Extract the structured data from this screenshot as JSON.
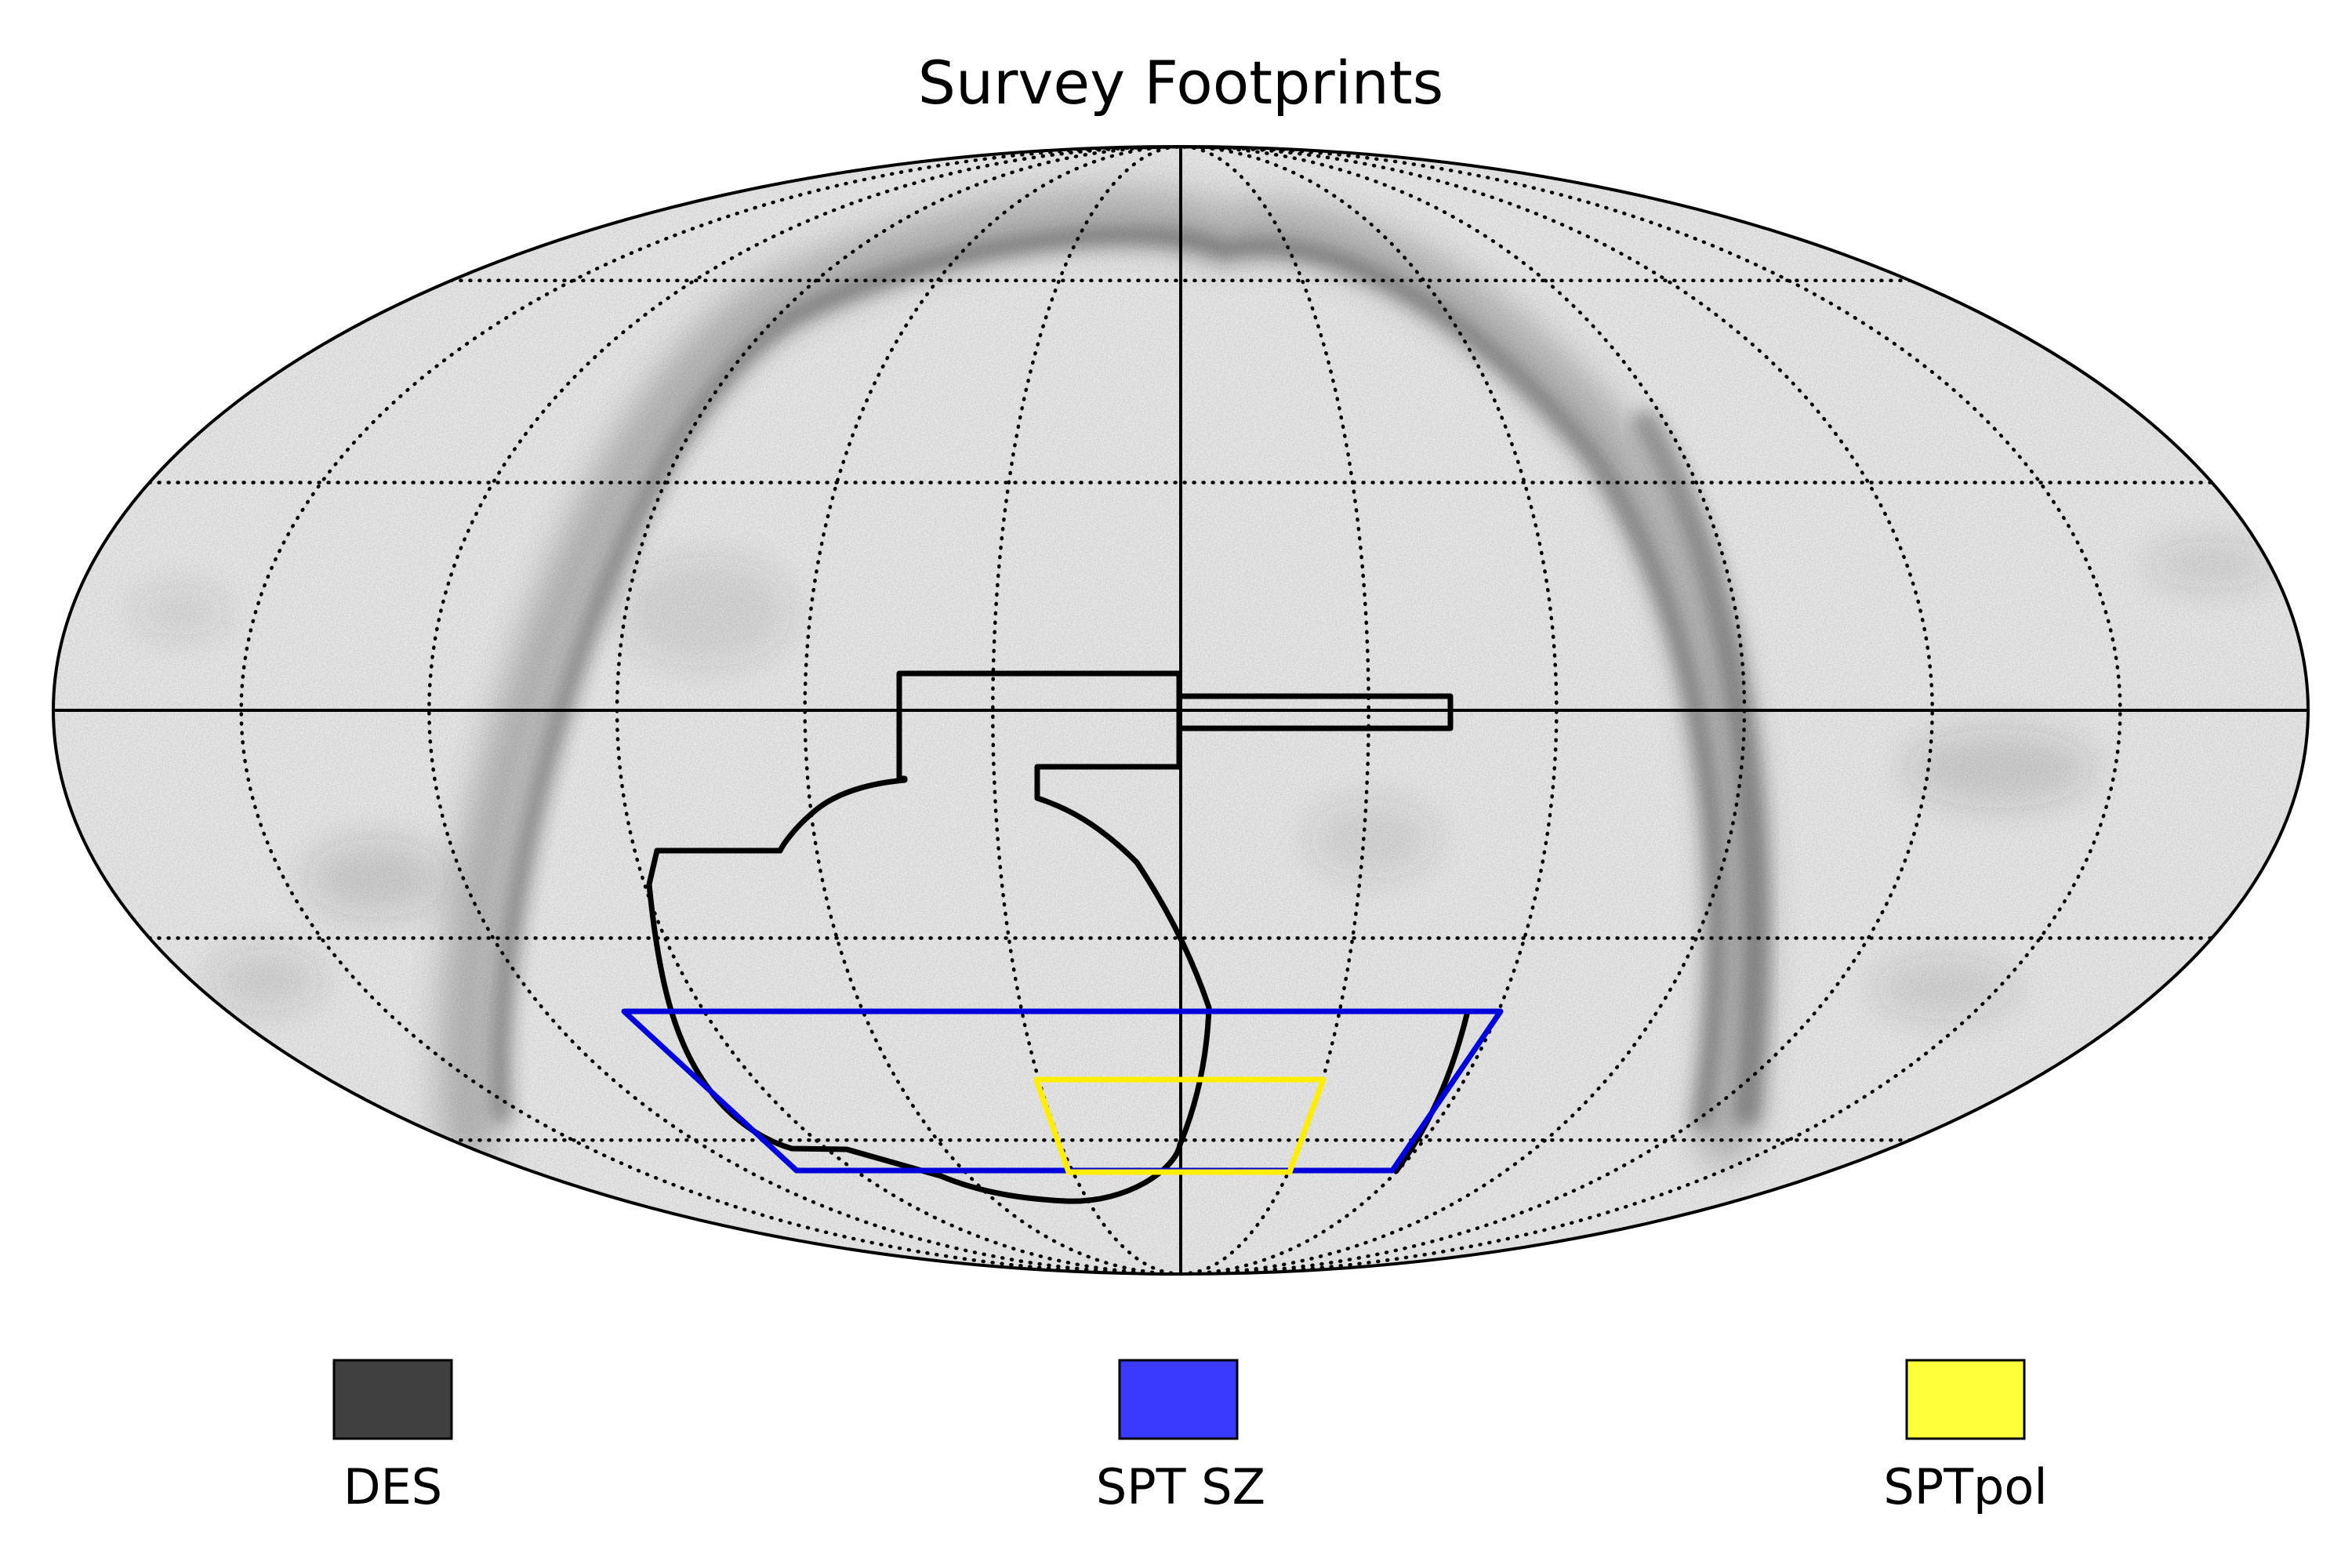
{
  "title": "Survey Footprints",
  "projection": "mollweide",
  "graticule": {
    "meridians_deg": [
      -150,
      -120,
      -90,
      -60,
      -30,
      0,
      30,
      60,
      90,
      120,
      150
    ],
    "parallels_deg": [
      -60,
      -30,
      0,
      30,
      60
    ],
    "solid_meridian_deg": 0,
    "solid_parallel_deg": 0,
    "style": "dotted"
  },
  "background": {
    "description_key": "dust-map",
    "base_color": "#f4f4f4",
    "band_color": "#3c3c3c"
  },
  "footprints": [
    {
      "key": "des",
      "label": "DES",
      "outline_color": "#000000",
      "swatch_color": "#404040"
    },
    {
      "key": "spt_sz",
      "label": "SPT SZ",
      "outline_color": "#0000dd",
      "swatch_color": "#3a3aff"
    },
    {
      "key": "sptpol",
      "label": "SPTpol",
      "outline_color": "#ffee00",
      "swatch_color": "#ffff3a"
    }
  ]
}
